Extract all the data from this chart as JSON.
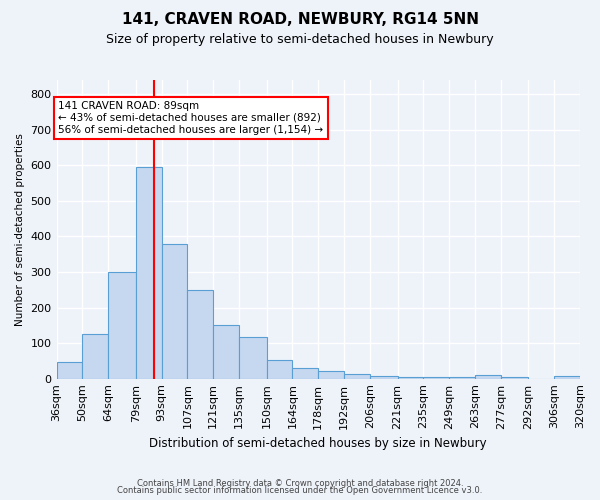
{
  "title": "141, CRAVEN ROAD, NEWBURY, RG14 5NN",
  "subtitle": "Size of property relative to semi-detached houses in Newbury",
  "xlabel": "Distribution of semi-detached houses by size in Newbury",
  "ylabel": "Number of semi-detached properties",
  "footer_line1": "Contains HM Land Registry data © Crown copyright and database right 2024.",
  "footer_line2": "Contains public sector information licensed under the Open Government Licence v3.0.",
  "categories": [
    "36sqm",
    "50sqm",
    "64sqm",
    "79sqm",
    "93sqm",
    "107sqm",
    "121sqm",
    "135sqm",
    "150sqm",
    "164sqm",
    "178sqm",
    "192sqm",
    "206sqm",
    "221sqm",
    "235sqm",
    "249sqm",
    "263sqm",
    "277sqm",
    "292sqm",
    "306sqm",
    "320sqm"
  ],
  "values": [
    47,
    125,
    300,
    595,
    380,
    250,
    150,
    118,
    53,
    30,
    22,
    12,
    7,
    4,
    4,
    4,
    10,
    4,
    0,
    8,
    0
  ],
  "bar_color": "#c5d8f0",
  "bar_edge_color": "#5a9fd4",
  "annotation_box_text_line1": "141 CRAVEN ROAD: 89sqm",
  "annotation_box_text_line2": "← 43% of semi-detached houses are smaller (892)",
  "annotation_box_text_line3": "56% of semi-detached houses are larger (1,154) →",
  "property_size": 89,
  "bin_edges": [
    36,
    50,
    64,
    79,
    93,
    107,
    121,
    135,
    150,
    164,
    178,
    192,
    206,
    221,
    235,
    249,
    263,
    277,
    292,
    306,
    320
  ],
  "ylim": [
    0,
    840
  ],
  "background_color": "#eef2f9",
  "grid_color": "#ffffff",
  "title_fontsize": 11,
  "subtitle_fontsize": 9
}
